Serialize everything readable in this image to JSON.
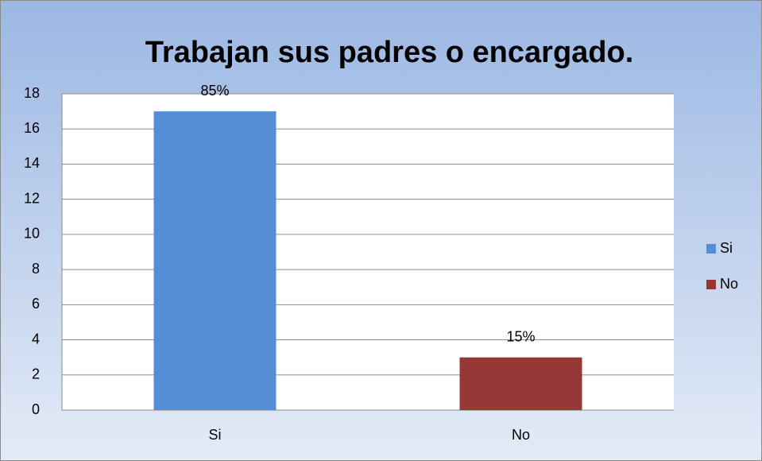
{
  "chart_data": {
    "type": "bar",
    "title": "Trabajan sus padres o encargado.",
    "categories": [
      "Si",
      "No"
    ],
    "values": [
      17,
      3
    ],
    "value_labels": [
      "85%",
      "15%"
    ],
    "colors": [
      "#558ed5",
      "#953735"
    ],
    "ylim": [
      0,
      18
    ],
    "yticks": [
      0,
      2,
      4,
      6,
      8,
      10,
      12,
      14,
      16,
      18
    ],
    "grid": true,
    "legend": "right"
  }
}
